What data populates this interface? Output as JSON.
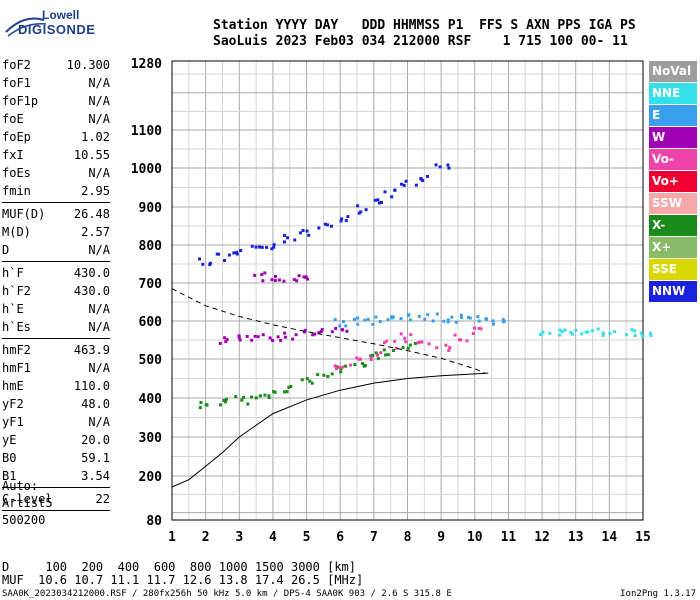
{
  "logo": {
    "company": "Lowell",
    "product": "DIGISONDE"
  },
  "header": {
    "line1": "Station YYYY DAY   DDD HHMMSS P1  FFS S AXN PPS IGA PS",
    "line2": "SaoLuis 2023 Feb03 034 212000 RSF    1 715 100 00- 11"
  },
  "params_group1": [
    {
      "label": "foF2",
      "value": "10.300"
    },
    {
      "label": "foF1",
      "value": "N/A"
    },
    {
      "label": "foF1p",
      "value": "N/A"
    },
    {
      "label": "foE",
      "value": "N/A"
    },
    {
      "label": "foEp",
      "value": "1.02"
    },
    {
      "label": "fxI",
      "value": "10.55"
    },
    {
      "label": "foEs",
      "value": "N/A"
    },
    {
      "label": "fmin",
      "value": "2.95"
    }
  ],
  "params_group2": [
    {
      "label": "MUF(D)",
      "value": "26.48"
    },
    {
      "label": "M(D)",
      "value": "2.57"
    },
    {
      "label": "D",
      "value": "N/A"
    }
  ],
  "params_group3": [
    {
      "label": "h`F",
      "value": "430.0"
    },
    {
      "label": "h`F2",
      "value": "430.0"
    },
    {
      "label": "h`E",
      "value": "N/A"
    },
    {
      "label": "h`Es",
      "value": "N/A"
    }
  ],
  "params_group4": [
    {
      "label": "hmF2",
      "value": "463.9"
    },
    {
      "label": "hmF1",
      "value": "N/A"
    },
    {
      "label": "hmE",
      "value": "110.0"
    },
    {
      "label": "yF2",
      "value": "48.0"
    },
    {
      "label": "yF1",
      "value": "N/A"
    },
    {
      "label": "yE",
      "value": "20.0"
    },
    {
      "label": "B0",
      "value": "59.1"
    },
    {
      "label": "B1",
      "value": "3.54"
    }
  ],
  "params_group5": [
    {
      "label": "C-level",
      "value": "22"
    }
  ],
  "auto": {
    "line1": "Auto:",
    "line2": "Artist5",
    "line3": "500200"
  },
  "legend": [
    {
      "label": "NoVal",
      "color": "#9e9e9e"
    },
    {
      "label": "NNE",
      "color": "#33e0e8"
    },
    {
      "label": "E",
      "color": "#3aa0ee"
    },
    {
      "label": "W",
      "color": "#a000b4"
    },
    {
      "label": "Vo-",
      "color": "#ee44aa"
    },
    {
      "label": "Vo+",
      "color": "#ee0033"
    },
    {
      "label": "SSW",
      "color": "#f4a8a8"
    },
    {
      "label": "X-",
      "color": "#1a8a1a"
    },
    {
      "label": "X+",
      "color": "#88bb66"
    },
    {
      "label": "SSE",
      "color": "#d8d800"
    },
    {
      "label": "NNW",
      "color": "#1a22dd"
    }
  ],
  "bottom": {
    "d_line": "D     100  200  400  600  800 1000 1500 3000 [km]",
    "muf_line": "MUF  10.6 10.7 11.1 11.7 12.6 13.8 17.4 26.5 [MHz]"
  },
  "footer": {
    "left": "SAA0K_2023034212000.RSF / 280fx256h 50 kHz 5.0 km / DPS-4 SAA0K 903 / 2.6 S 315.8 E",
    "right": "Ion2Png 1.3.17"
  },
  "chart_data": {
    "type": "scatter",
    "x_ticks": [
      1,
      2,
      3,
      4,
      5,
      6,
      7,
      8,
      9,
      10,
      11,
      12,
      13,
      14,
      15
    ],
    "y_ticks": [
      80,
      200,
      300,
      400,
      500,
      600,
      700,
      800,
      900,
      1000,
      1100,
      1280
    ],
    "xlim": [
      1,
      15
    ],
    "ylim": [
      80,
      1280
    ],
    "grid": true,
    "series": [
      {
        "color": "#1a8a1a",
        "x": [
          2.0,
          2.5,
          3.0,
          3.5,
          4.0,
          4.5,
          5.0,
          5.5,
          6.0,
          6.5,
          7.0,
          7.5,
          8.0
        ],
        "y": [
          387,
          392,
          398,
          405,
          415,
          428,
          445,
          462,
          478,
          495,
          510,
          525,
          540
        ]
      },
      {
        "color": "#1a22dd",
        "x": [
          2.0,
          2.5,
          3.0,
          3.5,
          4.0,
          4.5,
          5.0,
          5.5,
          6.0,
          6.5,
          7.0,
          7.5,
          8.0,
          8.5,
          9.0
        ],
        "y": [
          760,
          770,
          780,
          790,
          803,
          820,
          838,
          857,
          877,
          898,
          920,
          940,
          960,
          980,
          1005
        ]
      },
      {
        "color": "#a000b4",
        "x": [
          2.6,
          3.0,
          3.5,
          4.0,
          4.5,
          5.0,
          5.5,
          6.0
        ],
        "y": [
          550,
          555,
          558,
          562,
          566,
          572,
          578,
          582
        ]
      },
      {
        "color": "#3aa0ee",
        "x": [
          6.0,
          6.5,
          7.0,
          7.5,
          8.0,
          8.5,
          9.0,
          9.5,
          10.0,
          10.5,
          11.0
        ],
        "y": [
          600,
          603,
          605,
          608,
          610,
          612,
          612,
          610,
          608,
          605,
          600
        ]
      },
      {
        "color": "#33e0e8",
        "x": [
          12.0,
          12.5,
          13.0,
          13.5,
          14.0,
          14.5,
          15.0
        ],
        "y": [
          575,
          575,
          574,
          574,
          572,
          572,
          570
        ]
      },
      {
        "color": "#ee44aa",
        "x": [
          6.0,
          6.5,
          7.0,
          7.5,
          8.0,
          8.5,
          9.0,
          9.5,
          10.0
        ],
        "y": [
          485,
          498,
          512,
          540,
          560,
          548,
          530,
          560,
          580
        ]
      },
      {
        "color": "#a000b4",
        "x": [
          3.5,
          4.0,
          4.5,
          5.0
        ],
        "y": [
          720,
          717,
          715,
          713
        ]
      }
    ],
    "profile_line": {
      "x": [
        1.0,
        1.5,
        2.0,
        2.5,
        3.0,
        4.0,
        5.0,
        6.0,
        7.0,
        8.0,
        9.0,
        10.0,
        10.4
      ],
      "y": [
        170,
        190,
        225,
        260,
        300,
        360,
        395,
        420,
        438,
        450,
        457,
        462,
        463.9
      ]
    },
    "dashed_line": {
      "x": [
        1.0,
        2.0,
        3.0,
        4.0,
        5.0,
        6.0,
        7.0,
        8.0,
        9.0,
        10.0,
        10.3
      ],
      "y": [
        685,
        640,
        612,
        590,
        572,
        556,
        540,
        522,
        502,
        475,
        463.9
      ]
    }
  }
}
